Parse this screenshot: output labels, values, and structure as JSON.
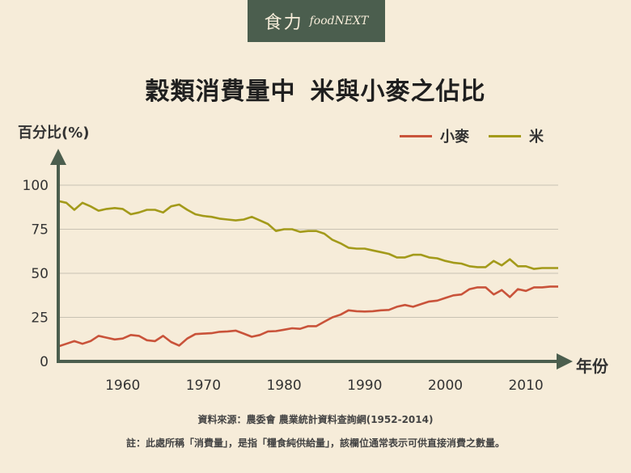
{
  "brand": {
    "cn": "食力",
    "en": "foodNEXT"
  },
  "title_part1": "穀類消費量中",
  "title_part2": "米與小麥之佔比",
  "colors": {
    "wheat": "#c9533a",
    "rice": "#a39a1a",
    "axis": "#4b5e4e",
    "grid": "#c8c2b3"
  },
  "chart_data": {
    "type": "line",
    "ylabel": "百分比(%)",
    "xlabel": "年份",
    "xlim": [
      1952,
      2014
    ],
    "ylim": [
      0,
      100
    ],
    "xticks": [
      1960,
      1970,
      1980,
      1990,
      2000,
      2010
    ],
    "yticks": [
      0,
      25,
      50,
      75,
      100
    ],
    "grid": true,
    "legend": "top-right",
    "x": [
      1952,
      1953,
      1954,
      1955,
      1956,
      1957,
      1958,
      1959,
      1960,
      1961,
      1962,
      1963,
      1964,
      1965,
      1966,
      1967,
      1968,
      1969,
      1970,
      1971,
      1972,
      1973,
      1974,
      1975,
      1976,
      1977,
      1978,
      1979,
      1980,
      1981,
      1982,
      1983,
      1984,
      1985,
      1986,
      1987,
      1988,
      1989,
      1990,
      1991,
      1992,
      1993,
      1994,
      1995,
      1996,
      1997,
      1998,
      1999,
      2000,
      2001,
      2002,
      2003,
      2004,
      2005,
      2006,
      2007,
      2008,
      2009,
      2010,
      2011,
      2012,
      2013,
      2014
    ],
    "series": [
      {
        "name": "小麥",
        "values": [
          8.5,
          10,
          11.5,
          10,
          11.5,
          14.5,
          13.5,
          12.5,
          13,
          15,
          14.5,
          12,
          11.5,
          14.5,
          11,
          9,
          13,
          15.5,
          15.8,
          16,
          16.8,
          17,
          17.5,
          15.8,
          14,
          15,
          17,
          17.2,
          18,
          18.8,
          18.5,
          20,
          20,
          22.5,
          25,
          26.5,
          29,
          28.5,
          28.3,
          28.5,
          29,
          29.2,
          31,
          32,
          31,
          32.5,
          34,
          34.5,
          36,
          37.5,
          38,
          41,
          42,
          42,
          38,
          40.5,
          36.5,
          41,
          40,
          42,
          42,
          42.5,
          42.5
        ]
      },
      {
        "name": "米",
        "values": [
          91,
          90,
          86,
          90,
          88,
          85.5,
          86.5,
          87,
          86.5,
          83.5,
          84.5,
          86,
          86,
          84.5,
          88,
          89,
          86,
          83.5,
          82.5,
          82,
          81,
          80.5,
          80,
          80.5,
          82,
          80,
          78,
          74,
          75,
          75,
          73.5,
          74,
          74,
          72.5,
          69,
          67,
          64.5,
          64,
          64,
          63,
          62,
          61,
          59,
          59,
          60.5,
          60.5,
          59,
          58.5,
          57,
          56,
          55.5,
          54,
          53.5,
          53.5,
          57,
          54.5,
          58,
          54,
          54,
          52.5,
          53,
          53,
          53
        ]
      }
    ]
  },
  "source": "資料來源：農委會 農業統計資料查詢網(1952-2014)",
  "note": "註：此處所稱「消費量」，是指「糧食純供給量」，該欄位通常表示可供直接消費之數量。"
}
